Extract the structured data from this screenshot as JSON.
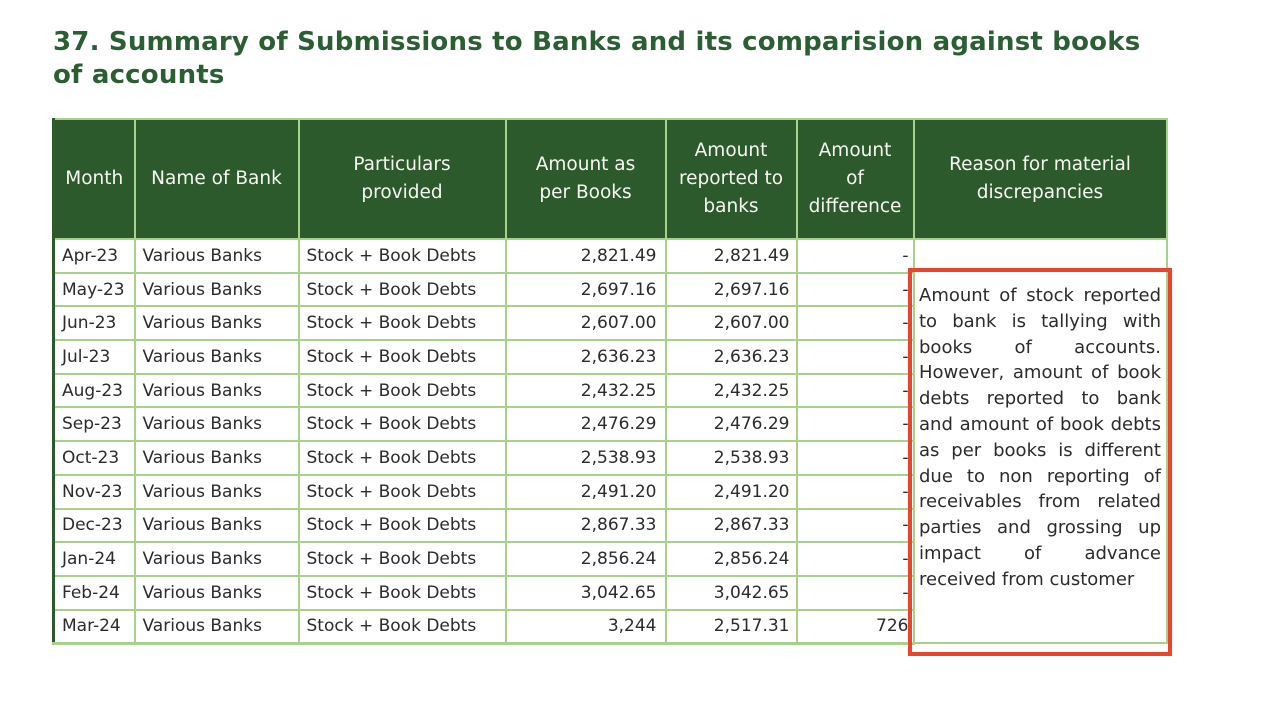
{
  "title_lines": [
    "37. Summary of Submissions to Banks and its comparision against books",
    "of accounts"
  ],
  "table": {
    "headers": {
      "month": "Month",
      "bank": "Name of Bank",
      "particulars": "Particulars\nprovided",
      "books": "Amount as\nper Books",
      "reported": "Amount\nreported to\nbanks",
      "difference": "Amount\nof\ndifference",
      "reason": "Reason for material\ndiscrepancies"
    },
    "rows": [
      {
        "month": "Apr-23",
        "bank": "Various Banks",
        "particulars": "Stock + Book Debts",
        "books": "2,821.49",
        "reported": "2,821.49",
        "difference": "-"
      },
      {
        "month": "May-23",
        "bank": "Various Banks",
        "particulars": "Stock + Book Debts",
        "books": "2,697.16",
        "reported": "2,697.16",
        "difference": "-"
      },
      {
        "month": "Jun-23",
        "bank": "Various Banks",
        "particulars": "Stock + Book Debts",
        "books": "2,607.00",
        "reported": "2,607.00",
        "difference": "-"
      },
      {
        "month": "Jul-23",
        "bank": "Various Banks",
        "particulars": "Stock + Book Debts",
        "books": "2,636.23",
        "reported": "2,636.23",
        "difference": "-"
      },
      {
        "month": "Aug-23",
        "bank": "Various Banks",
        "particulars": "Stock + Book Debts",
        "books": "2,432.25",
        "reported": "2,432.25",
        "difference": "-"
      },
      {
        "month": "Sep-23",
        "bank": "Various Banks",
        "particulars": "Stock + Book Debts",
        "books": "2,476.29",
        "reported": "2,476.29",
        "difference": "-"
      },
      {
        "month": "Oct-23",
        "bank": "Various Banks",
        "particulars": "Stock + Book Debts",
        "books": "2,538.93",
        "reported": "2,538.93",
        "difference": "-"
      },
      {
        "month": "Nov-23",
        "bank": "Various Banks",
        "particulars": "Stock + Book Debts",
        "books": "2,491.20",
        "reported": "2,491.20",
        "difference": "-"
      },
      {
        "month": "Dec-23",
        "bank": "Various Banks",
        "particulars": "Stock + Book Debts",
        "books": "2,867.33",
        "reported": "2,867.33",
        "difference": "-"
      },
      {
        "month": "Jan-24",
        "bank": "Various Banks",
        "particulars": "Stock + Book Debts",
        "books": "2,856.24",
        "reported": "2,856.24",
        "difference": "-"
      },
      {
        "month": "Feb-24",
        "bank": "Various Banks",
        "particulars": "Stock + Book Debts",
        "books": "3,042.65",
        "reported": "3,042.65",
        "difference": "-"
      },
      {
        "month": "Mar-24",
        "bank": "Various Banks",
        "particulars": "Stock + Book Debts",
        "books": "3,244",
        "reported": "2,517.31",
        "difference": "726"
      }
    ],
    "reason_note": "Amount of stock reported to bank is tallying with books of accounts. However, amount of book debts reported to bank and amount of book debts as per books is different due to non reporting of receivables from related parties and grossing up impact of advance received from customer"
  },
  "colors": {
    "header_bg": "#2d5a2c",
    "grid_border": "#a9d18e",
    "title_text": "#2b5e33",
    "annotation_border": "#e8452f",
    "body_text": "#2b2b2b",
    "header_text": "#f7f7f2"
  }
}
